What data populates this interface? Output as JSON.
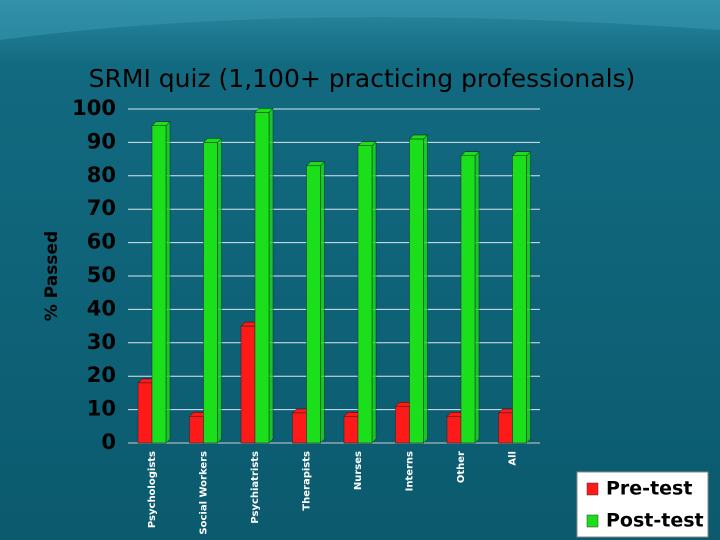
{
  "chart_data": {
    "type": "bar",
    "title": "SRMI quiz (1,100+ practicing professionals)",
    "y_label": "% Passed",
    "categories": [
      "Psychologists",
      "Social Workers",
      "Psychiatrists",
      "Therapists",
      "Nurses",
      "Interns",
      "Other",
      "All"
    ],
    "series": [
      {
        "name": "Pre-test",
        "color": "#ff1a1a",
        "values": [
          18,
          8,
          35,
          9,
          8,
          11,
          8,
          9
        ]
      },
      {
        "name": "Post-test",
        "color": "#1adf1a",
        "values": [
          95,
          90,
          99,
          83,
          89,
          91,
          86,
          86
        ]
      }
    ],
    "ylim": [
      0,
      100
    ],
    "yticks": [
      0,
      10,
      20,
      30,
      40,
      50,
      60,
      70,
      80,
      90,
      100
    ],
    "grid": true,
    "legend_position": "lower right"
  }
}
